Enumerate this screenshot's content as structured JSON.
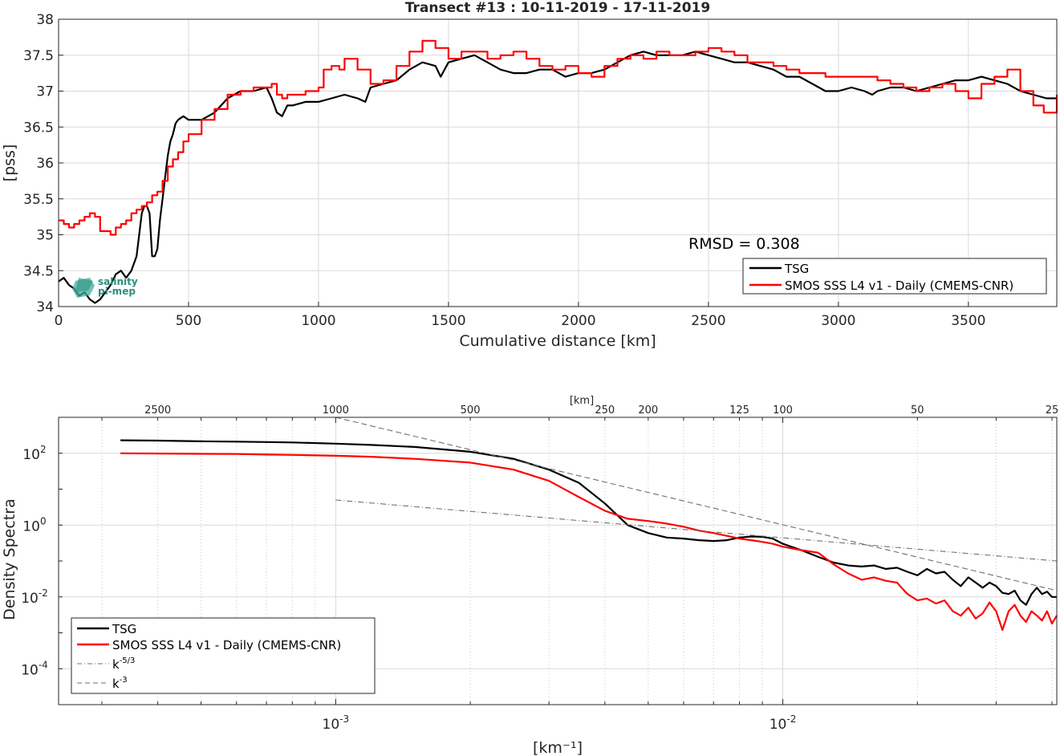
{
  "chart_data": [
    {
      "type": "line",
      "title": "Transect #13 : 10-11-2019 - 17-11-2019",
      "xlabel": "Cumulative distance [km]",
      "ylabel": "[pss]",
      "xlim": [
        0,
        3840
      ],
      "ylim": [
        34,
        38
      ],
      "xticks": [
        0,
        500,
        1000,
        1500,
        2000,
        2500,
        3000,
        3500
      ],
      "yticks": [
        34,
        34.5,
        35,
        35.5,
        36,
        36.5,
        37,
        37.5,
        38
      ],
      "xtick_labels": [
        "0",
        "500",
        "1000",
        "1500",
        "2000",
        "2500",
        "3000",
        "3500"
      ],
      "ytick_labels": [
        "34",
        "34.5",
        "35",
        "35.5",
        "36",
        "36.5",
        "37",
        "37.5",
        "38"
      ],
      "grid": true,
      "legend_position": "bottom-right",
      "annotation": "RMSD = 0.308",
      "logo_text": [
        "salinity",
        "pi-mep"
      ],
      "series": [
        {
          "name": "TSG",
          "color": "#000000",
          "x": [
            0,
            20,
            40,
            60,
            80,
            100,
            120,
            140,
            160,
            180,
            200,
            220,
            240,
            260,
            280,
            300,
            320,
            330,
            340,
            350,
            360,
            370,
            380,
            390,
            400,
            410,
            420,
            430,
            440,
            450,
            460,
            480,
            500,
            550,
            600,
            650,
            700,
            750,
            800,
            820,
            840,
            860,
            880,
            900,
            950,
            1000,
            1050,
            1100,
            1150,
            1180,
            1200,
            1250,
            1300,
            1350,
            1400,
            1450,
            1470,
            1500,
            1550,
            1600,
            1650,
            1700,
            1750,
            1800,
            1850,
            1900,
            1950,
            2000,
            2050,
            2100,
            2150,
            2200,
            2250,
            2300,
            2350,
            2400,
            2450,
            2500,
            2550,
            2600,
            2650,
            2700,
            2750,
            2800,
            2850,
            2900,
            2950,
            3000,
            3050,
            3100,
            3130,
            3150,
            3200,
            3250,
            3300,
            3350,
            3400,
            3450,
            3500,
            3550,
            3600,
            3650,
            3700,
            3750,
            3800,
            3840
          ],
          "y": [
            34.35,
            34.4,
            34.3,
            34.25,
            34.15,
            34.2,
            34.1,
            34.05,
            34.1,
            34.2,
            34.3,
            34.45,
            34.5,
            34.4,
            34.5,
            34.7,
            35.3,
            35.4,
            35.4,
            35.3,
            34.7,
            34.7,
            34.8,
            35.2,
            35.5,
            35.8,
            36.1,
            36.3,
            36.4,
            36.55,
            36.6,
            36.65,
            36.6,
            36.6,
            36.7,
            36.9,
            37.0,
            37.0,
            37.05,
            36.9,
            36.7,
            36.65,
            36.8,
            36.8,
            36.85,
            36.85,
            36.9,
            36.95,
            36.9,
            36.85,
            37.05,
            37.1,
            37.15,
            37.3,
            37.4,
            37.35,
            37.2,
            37.4,
            37.45,
            37.5,
            37.4,
            37.3,
            37.25,
            37.25,
            37.3,
            37.3,
            37.2,
            37.25,
            37.25,
            37.3,
            37.4,
            37.5,
            37.55,
            37.5,
            37.5,
            37.5,
            37.55,
            37.5,
            37.45,
            37.4,
            37.4,
            37.35,
            37.3,
            37.2,
            37.2,
            37.1,
            37.0,
            37.0,
            37.05,
            37.0,
            36.95,
            37.0,
            37.05,
            37.05,
            37.0,
            37.05,
            37.1,
            37.15,
            37.15,
            37.2,
            37.15,
            37.1,
            37.0,
            36.95,
            36.9,
            36.9
          ]
        },
        {
          "name": "SMOS SSS L4 v1 - Daily (CMEMS-CNR)",
          "color": "#ff0000",
          "x": [
            0,
            20,
            40,
            60,
            80,
            100,
            120,
            140,
            160,
            180,
            200,
            220,
            240,
            260,
            280,
            300,
            320,
            340,
            360,
            380,
            400,
            420,
            440,
            460,
            480,
            500,
            550,
            600,
            650,
            700,
            750,
            800,
            820,
            840,
            860,
            880,
            900,
            950,
            1000,
            1020,
            1050,
            1080,
            1100,
            1150,
            1200,
            1250,
            1300,
            1350,
            1400,
            1450,
            1500,
            1550,
            1600,
            1650,
            1700,
            1750,
            1800,
            1850,
            1900,
            1950,
            2000,
            2050,
            2100,
            2150,
            2200,
            2250,
            2300,
            2350,
            2400,
            2450,
            2500,
            2550,
            2600,
            2650,
            2700,
            2750,
            2800,
            2850,
            2900,
            2950,
            3000,
            3050,
            3100,
            3150,
            3200,
            3250,
            3300,
            3350,
            3400,
            3450,
            3500,
            3550,
            3600,
            3650,
            3700,
            3750,
            3790,
            3840
          ],
          "y": [
            35.2,
            35.15,
            35.1,
            35.15,
            35.2,
            35.25,
            35.3,
            35.25,
            35.05,
            35.05,
            35.0,
            35.1,
            35.15,
            35.2,
            35.3,
            35.35,
            35.4,
            35.45,
            35.55,
            35.6,
            35.75,
            35.95,
            36.05,
            36.15,
            36.3,
            36.4,
            36.6,
            36.75,
            36.95,
            37.0,
            37.05,
            37.05,
            37.1,
            36.95,
            36.9,
            36.95,
            36.95,
            37.0,
            37.05,
            37.3,
            37.35,
            37.3,
            37.45,
            37.3,
            37.1,
            37.15,
            37.35,
            37.55,
            37.7,
            37.6,
            37.45,
            37.55,
            37.55,
            37.45,
            37.5,
            37.55,
            37.45,
            37.35,
            37.3,
            37.35,
            37.25,
            37.2,
            37.35,
            37.45,
            37.5,
            37.45,
            37.55,
            37.5,
            37.5,
            37.55,
            37.6,
            37.55,
            37.5,
            37.4,
            37.4,
            37.35,
            37.3,
            37.25,
            37.25,
            37.2,
            37.2,
            37.2,
            37.2,
            37.15,
            37.1,
            37.05,
            37.0,
            37.05,
            37.1,
            37.0,
            36.9,
            37.1,
            37.2,
            37.3,
            37.0,
            36.8,
            36.7,
            36.95
          ]
        }
      ]
    },
    {
      "type": "line",
      "xlabel": "[km⁻¹]",
      "ylabel": "Density Spectra",
      "top_axis_label": "[km]",
      "x_scale": "log",
      "y_scale": "log",
      "xlim": [
        0.00024,
        0.041
      ],
      "ylim": [
        1e-05,
        1000
      ],
      "xticks": [
        0.001,
        0.01
      ],
      "xtick_labels": [
        "10",
        "10"
      ],
      "xtick_exponents": [
        "-3",
        "-2"
      ],
      "yticks": [
        0.0001,
        0.01,
        1,
        100
      ],
      "ytick_labels": [
        "10",
        "10",
        "10",
        "10"
      ],
      "ytick_exponents": [
        "-4",
        "-2",
        "0",
        "2"
      ],
      "top_ticks_km": [
        2500,
        1000,
        500,
        250,
        200,
        125,
        100,
        50,
        25
      ],
      "top_tick_labels": [
        "2500",
        "1000",
        "500",
        "250",
        "200",
        "125",
        "100",
        "50",
        "25"
      ],
      "grid": true,
      "legend_position": "bottom-left",
      "series": [
        {
          "name": "TSG",
          "color": "#000000",
          "style": "solid",
          "x": [
            0.00033,
            0.0004,
            0.0005,
            0.0006,
            0.0007,
            0.0008,
            0.001,
            0.0012,
            0.0015,
            0.002,
            0.0025,
            0.003,
            0.0035,
            0.004,
            0.0045,
            0.005,
            0.0055,
            0.006,
            0.0065,
            0.007,
            0.0075,
            0.008,
            0.0085,
            0.009,
            0.0095,
            0.01,
            0.011,
            0.012,
            0.013,
            0.014,
            0.015,
            0.016,
            0.017,
            0.018,
            0.019,
            0.02,
            0.021,
            0.022,
            0.023,
            0.024,
            0.025,
            0.026,
            0.027,
            0.028,
            0.029,
            0.03,
            0.031,
            0.032,
            0.033,
            0.034,
            0.035,
            0.036,
            0.037,
            0.038,
            0.039,
            0.04,
            0.041
          ],
          "y": [
            230,
            225,
            215,
            210,
            205,
            200,
            185,
            170,
            150,
            110,
            70,
            35,
            15,
            4,
            1.0,
            0.6,
            0.45,
            0.42,
            0.38,
            0.36,
            0.38,
            0.45,
            0.48,
            0.47,
            0.42,
            0.3,
            0.2,
            0.13,
            0.09,
            0.075,
            0.07,
            0.075,
            0.06,
            0.065,
            0.05,
            0.04,
            0.06,
            0.045,
            0.05,
            0.03,
            0.02,
            0.035,
            0.025,
            0.018,
            0.025,
            0.02,
            0.013,
            0.012,
            0.015,
            0.008,
            0.006,
            0.012,
            0.018,
            0.012,
            0.014,
            0.01,
            0.01
          ]
        },
        {
          "name": "SMOS SSS L4 v1 - Daily (CMEMS-CNR)",
          "color": "#ff0000",
          "style": "solid",
          "x": [
            0.00033,
            0.0004,
            0.0005,
            0.0006,
            0.0007,
            0.0008,
            0.001,
            0.0012,
            0.0015,
            0.002,
            0.0025,
            0.003,
            0.0035,
            0.004,
            0.0045,
            0.005,
            0.0055,
            0.006,
            0.0065,
            0.007,
            0.0075,
            0.008,
            0.0085,
            0.009,
            0.0095,
            0.01,
            0.011,
            0.012,
            0.013,
            0.014,
            0.015,
            0.016,
            0.017,
            0.018,
            0.019,
            0.02,
            0.021,
            0.022,
            0.023,
            0.024,
            0.025,
            0.026,
            0.027,
            0.028,
            0.029,
            0.03,
            0.031,
            0.032,
            0.033,
            0.034,
            0.035,
            0.036,
            0.037,
            0.038,
            0.039,
            0.04,
            0.041
          ],
          "y": [
            100,
            98,
            96,
            95,
            92,
            90,
            85,
            80,
            70,
            55,
            35,
            17,
            6,
            2.5,
            1.5,
            1.3,
            1.1,
            0.9,
            0.7,
            0.6,
            0.5,
            0.42,
            0.38,
            0.34,
            0.3,
            0.25,
            0.2,
            0.17,
            0.08,
            0.045,
            0.03,
            0.035,
            0.028,
            0.025,
            0.012,
            0.008,
            0.009,
            0.0065,
            0.008,
            0.004,
            0.003,
            0.005,
            0.0025,
            0.0035,
            0.007,
            0.004,
            0.0012,
            0.004,
            0.006,
            0.003,
            0.002,
            0.004,
            0.003,
            0.0022,
            0.004,
            0.0018,
            0.003
          ]
        },
        {
          "name": "k^-5/3",
          "color": "#707070",
          "style": "dashdot",
          "x": [
            0.001,
            0.041
          ],
          "y": [
            5,
            0.1
          ]
        },
        {
          "name": "k^-3",
          "color": "#707070",
          "style": "dashed",
          "x": [
            0.001,
            0.041
          ],
          "y": [
            1000,
            0.015
          ]
        }
      ],
      "legend_entries": [
        {
          "label": "TSG",
          "sup": ""
        },
        {
          "label": "SMOS SSS L4 v1 - Daily (CMEMS-CNR)",
          "sup": ""
        },
        {
          "label": "k",
          "sup": "-5/3"
        },
        {
          "label": "k",
          "sup": "-3"
        }
      ]
    }
  ]
}
